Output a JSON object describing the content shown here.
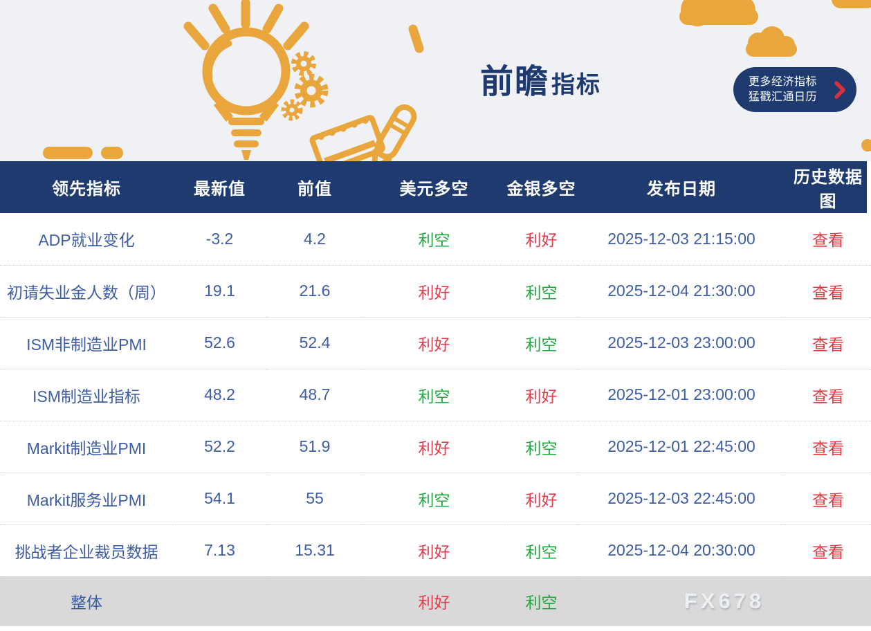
{
  "colors": {
    "orange": "#E9A63C",
    "navy": "#1E3A6E",
    "banner_bg": "#F0F1F5",
    "row_blue": "#3D5CA6",
    "red": "#E23A48",
    "green": "#1FA83C",
    "link_red": "#E8373C",
    "footer_bg": "#D9D9D9",
    "chevron_red": "#D9303E"
  },
  "banner": {
    "title_main": "前瞻",
    "title_sub": "指标",
    "more_button": {
      "line1": "更多经济指标",
      "line2": "猛戳汇通日历"
    }
  },
  "table": {
    "columns": [
      "领先指标",
      "最新值",
      "前值",
      "美元多空",
      "金银多空",
      "发布日期",
      "历史数据图"
    ],
    "sentiment_good_word": "利好",
    "rows": [
      {
        "name": "ADP就业变化",
        "latest": "-3.2",
        "previous": "4.2",
        "usd": "利空",
        "gold": "利好",
        "date": "2025-12-03 21:15:00",
        "action": "查看"
      },
      {
        "name": "初请失业金人数（周）",
        "latest": "19.1",
        "previous": "21.6",
        "usd": "利好",
        "gold": "利空",
        "date": "2025-12-04 21:30:00",
        "action": "查看"
      },
      {
        "name": "ISM非制造业PMI",
        "latest": "52.6",
        "previous": "52.4",
        "usd": "利好",
        "gold": "利空",
        "date": "2025-12-03 23:00:00",
        "action": "查看"
      },
      {
        "name": "ISM制造业指标",
        "latest": "48.2",
        "previous": "48.7",
        "usd": "利空",
        "gold": "利好",
        "date": "2025-12-01 23:00:00",
        "action": "查看"
      },
      {
        "name": "Markit制造业PMI",
        "latest": "52.2",
        "previous": "51.9",
        "usd": "利好",
        "gold": "利空",
        "date": "2025-12-01 22:45:00",
        "action": "查看"
      },
      {
        "name": "Markit服务业PMI",
        "latest": "54.1",
        "previous": "55",
        "usd": "利空",
        "gold": "利好",
        "date": "2025-12-03 22:45:00",
        "action": "查看"
      },
      {
        "name": "挑战者企业裁员数据",
        "latest": "7.13",
        "previous": "15.31",
        "usd": "利好",
        "gold": "利空",
        "date": "2025-12-04 20:30:00",
        "action": "查看"
      }
    ],
    "footer": {
      "label": "整体",
      "usd": "利好",
      "gold": "利空",
      "watermark": "FX678"
    }
  }
}
